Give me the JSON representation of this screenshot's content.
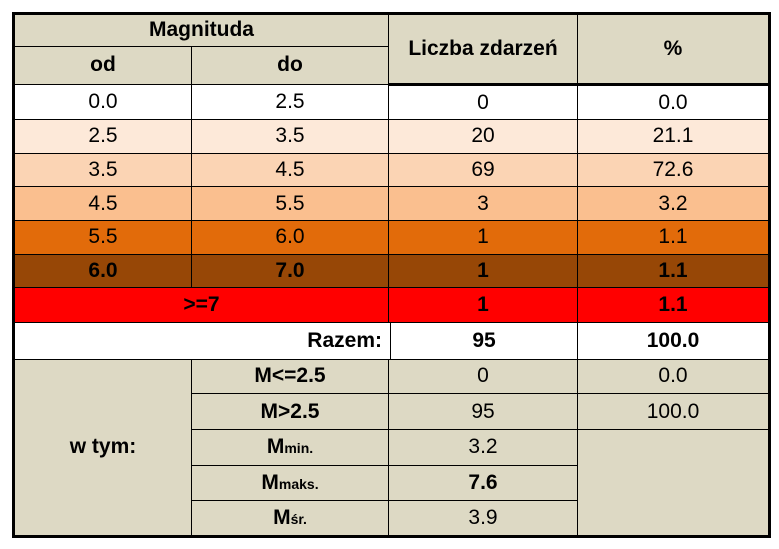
{
  "header": {
    "magnitude": "Magnituda",
    "from": "od",
    "to": "do",
    "count": "Liczba zdarzeń",
    "percent": "%"
  },
  "rows": [
    {
      "from": "0.0",
      "to": "2.5",
      "count": "0",
      "percent": "0.0",
      "color": "#ffffff"
    },
    {
      "from": "2.5",
      "to": "3.5",
      "count": "20",
      "percent": "21.1",
      "color": "#fde9d9"
    },
    {
      "from": "3.5",
      "to": "4.5",
      "count": "69",
      "percent": "72.6",
      "color": "#fbd4b4"
    },
    {
      "from": "4.5",
      "to": "5.5",
      "count": "3",
      "percent": "3.2",
      "color": "#fabf8f"
    },
    {
      "from": "5.5",
      "to": "6.0",
      "count": "1",
      "percent": "1.1",
      "color": "#e26b0a"
    },
    {
      "from": "6.0",
      "to": "7.0",
      "count": "1",
      "percent": "1.1",
      "color": "#974706"
    }
  ],
  "row_ge7": {
    "label": ">=7",
    "count": "1",
    "percent": "1.1",
    "color": "#ff0000"
  },
  "total": {
    "label": "Razem:",
    "count": "95",
    "percent": "100.0"
  },
  "breakdown": {
    "label": "w tym:",
    "le25": {
      "label": "M<=2.5",
      "count": "0",
      "percent": "0.0"
    },
    "gt25": {
      "label": "M>2.5",
      "count": "95",
      "percent": "100.0"
    },
    "min": {
      "label": "M",
      "sub": "min.",
      "value": "3.2"
    },
    "max": {
      "label": "M",
      "sub": "maks.",
      "value": "7.6"
    },
    "avg": {
      "label": "M",
      "sub": "śr.",
      "value": "3.9"
    }
  },
  "colors": {
    "header_bg": "#ddd9c4"
  }
}
